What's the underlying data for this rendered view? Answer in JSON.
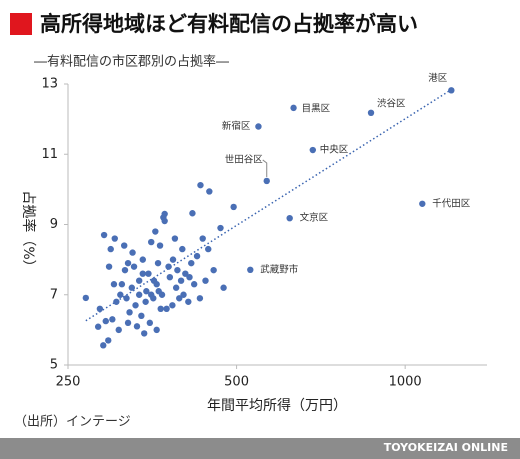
{
  "chart_data": {
    "type": "scatter",
    "title": "高所得地域ほど有料配信の占拠率が高い",
    "subtitle": "―有料配信の市区郡別の占拠率―",
    "xlabel": "年間平均所得（万円）",
    "ylabel": "占拠率（%）",
    "source": "（出所）インテージ",
    "footer": "TOYOKEIZAI ONLINE",
    "xlog": true,
    "xlim": [
      250,
      1400
    ],
    "xticks": [
      250,
      500,
      1000
    ],
    "ylim": [
      5,
      13
    ],
    "yticks": [
      5,
      7,
      9,
      11,
      13
    ],
    "color": "#4a6fb5",
    "x": [
      1209,
      632,
      869,
      547,
      684,
      566,
      1073,
      622,
      529,
      269,
      283,
      289,
      295,
      300,
      285,
      292,
      305,
      310,
      298,
      303,
      315,
      320,
      312,
      318,
      325,
      322,
      330,
      335,
      328,
      340,
      345,
      338,
      350,
      355,
      348,
      360,
      365,
      358,
      370,
      372,
      368,
      375,
      380,
      385,
      378,
      390,
      395,
      400,
      405,
      398,
      410,
      415,
      420,
      417,
      431,
      447,
      494,
      372,
      468,
      455,
      440,
      430,
      425,
      445,
      360,
      342,
      332,
      308,
      316,
      326,
      352,
      362,
      388,
      344,
      356,
      366,
      384,
      302,
      296,
      290,
      335,
      392,
      402,
      412,
      352,
      363,
      474,
      435,
      340,
      320
    ],
    "y": [
      12.82,
      12.32,
      12.18,
      11.79,
      11.12,
      10.24,
      9.59,
      9.18,
      7.71,
      6.91,
      6.09,
      5.56,
      5.7,
      6.3,
      6.6,
      6.25,
      6.8,
      7.0,
      8.3,
      8.6,
      8.4,
      7.9,
      7.3,
      6.9,
      7.2,
      6.5,
      6.7,
      7.4,
      7.8,
      8.0,
      7.1,
      6.4,
      6.2,
      6.9,
      7.6,
      7.3,
      8.4,
      8.8,
      9.2,
      9.3,
      7.0,
      6.6,
      7.5,
      8.0,
      7.8,
      7.2,
      6.9,
      8.3,
      7.6,
      7.4,
      6.8,
      7.9,
      7.3,
      9.32,
      10.12,
      9.94,
      9.5,
      9.1,
      8.9,
      7.7,
      7.4,
      6.9,
      8.1,
      8.3,
      6.0,
      5.9,
      6.1,
      6.0,
      7.7,
      8.2,
      8.5,
      7.9,
      8.6,
      6.8,
      7.4,
      6.6,
      6.7,
      7.3,
      7.8,
      8.7,
      7.0,
      7.7,
      7.0,
      7.5,
      7.0,
      7.1,
      7.2,
      8.6,
      7.6,
      6.2
    ],
    "labels": [
      "港区",
      "目黒区",
      "渋谷区",
      "新宿区",
      "中央区",
      "世田谷区",
      "千代田区",
      "文京区",
      "武蔵野市"
    ],
    "trendline": {
      "x": [
        269,
        1220
      ],
      "y": [
        6.26,
        12.88
      ]
    }
  }
}
